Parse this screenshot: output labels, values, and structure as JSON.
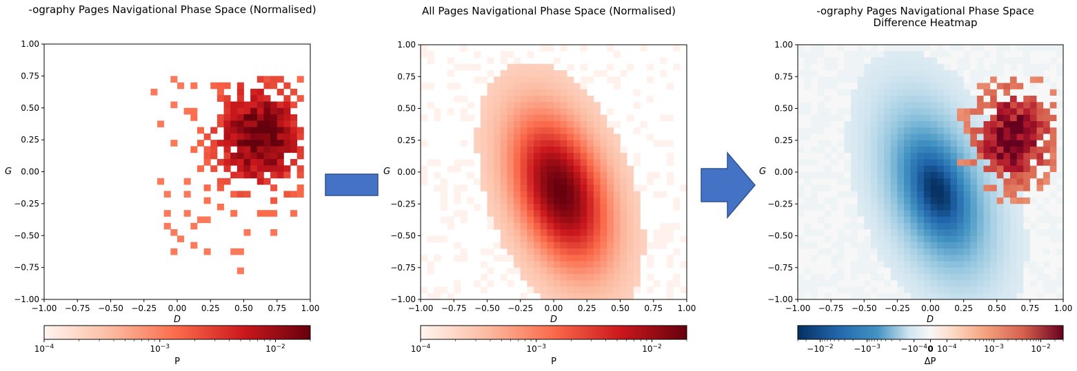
{
  "chart_data": [
    {
      "type": "heatmap",
      "title": "-ography Pages Navigational Phase Space (Normalised)",
      "xlabel": "D",
      "ylabel": "G",
      "xlim": [
        -1.0,
        1.0
      ],
      "ylim": [
        -1.0,
        1.0
      ],
      "xticks": [
        "−1.00",
        "−0.75",
        "−0.50",
        "−0.25",
        "0.00",
        "0.25",
        "0.50",
        "0.75",
        "1.00"
      ],
      "yticks": [
        "−1.00",
        "−0.75",
        "−0.50",
        "−0.25",
        "0.00",
        "0.25",
        "0.50",
        "0.75",
        "1.00"
      ],
      "bins": 40,
      "colormap": "Reds",
      "color_scale": "log",
      "colorbar": {
        "label": "P",
        "min": 0.0001,
        "max": 0.02,
        "ticks": [
          "10",
          "10",
          "10"
        ],
        "tick_exponents": [
          "−4",
          "−3",
          "−2"
        ],
        "tick_values": [
          0.0001,
          0.001,
          0.01
        ]
      },
      "data_summary": "Sparse occupancy concentrated at D 0.2 to 0.9, G -0.3 to 0.5; peak density near D 0.7, G 0.35"
    },
    {
      "type": "heatmap",
      "title": "All Pages Navigational Phase Space (Normalised)",
      "xlabel": "D",
      "ylabel": "G",
      "xlim": [
        -1.0,
        1.0
      ],
      "ylim": [
        -1.0,
        1.0
      ],
      "xticks": [
        "−1.00",
        "−0.75",
        "−0.50",
        "−0.25",
        "0.00",
        "0.25",
        "0.50",
        "0.75",
        "1.00"
      ],
      "yticks": [
        "−1.00",
        "−0.75",
        "−0.50",
        "−0.25",
        "0.00",
        "0.25",
        "0.50",
        "0.75",
        "1.00"
      ],
      "bins": 40,
      "colormap": "Reds",
      "color_scale": "log",
      "colorbar": {
        "label": "P",
        "min": 0.0001,
        "max": 0.02,
        "ticks": [
          "10",
          "10",
          "10"
        ],
        "tick_exponents": [
          "−4",
          "−3",
          "−2"
        ],
        "tick_values": [
          0.0001,
          0.001,
          0.01
        ]
      },
      "data_summary": "Broad tilted elliptical density centred near D 0.05, G -0.15; faint scattered cells across the square"
    },
    {
      "type": "heatmap",
      "title": "-ography Pages Navigational Phase Space",
      "subtitle": "Difference Heatmap",
      "xlabel": "D",
      "ylabel": "G",
      "xlim": [
        -1.0,
        1.0
      ],
      "ylim": [
        -1.0,
        1.0
      ],
      "xticks": [
        "−1.00",
        "−0.75",
        "−0.50",
        "−0.25",
        "0.00",
        "0.25",
        "0.50",
        "0.75",
        "1.00"
      ],
      "yticks": [
        "−1.00",
        "−0.75",
        "−0.50",
        "−0.25",
        "0.00",
        "0.25",
        "0.50",
        "0.75",
        "1.00"
      ],
      "bins": 40,
      "colormap": "RdBu_r",
      "color_scale": "symlog",
      "colorbar": {
        "label": "ΔP",
        "ticks": [
          "−10",
          "−10",
          "−10",
          "0",
          "10",
          "10",
          "10"
        ],
        "tick_exponents": [
          "−2",
          "−3",
          "−4",
          "",
          "−4",
          "−3",
          "−2"
        ],
        "tick_values": [
          -0.01,
          -0.001,
          -0.0001,
          0,
          0.0001,
          0.001,
          0.01
        ]
      },
      "data_summary": "Negative (blue) band following the all-pages density; positive (red) cells in the upper right where -ography pages concentrate"
    }
  ],
  "arrows": [
    "arrow-right-icon",
    "arrow-right-icon"
  ],
  "colors": {
    "arrow_fill": "#4472c4",
    "arrow_stroke": "#2f528f"
  }
}
